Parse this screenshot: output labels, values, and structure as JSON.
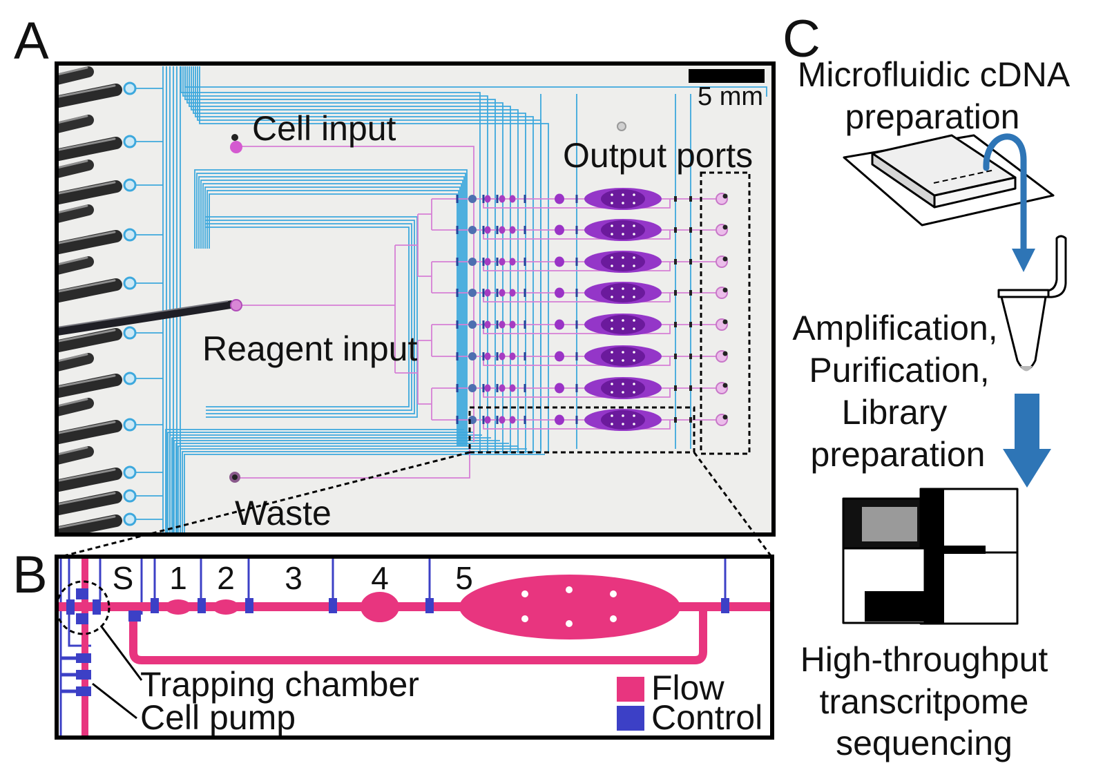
{
  "panels": {
    "a": "A",
    "b": "B",
    "c": "C"
  },
  "panel_a": {
    "scale_bar": "5 mm",
    "cell_input": "Cell input",
    "output_ports": "Output ports",
    "reagent_input": "Reagent input",
    "waste": "Waste"
  },
  "panel_b": {
    "stages": [
      "S",
      "1",
      "2",
      "3",
      "4",
      "5"
    ],
    "trapping_chamber": "Trapping chamber",
    "cell_pump": "Cell pump",
    "legend": [
      {
        "label": "Flow"
      },
      {
        "label": "Control"
      }
    ]
  },
  "panel_c": {
    "step1": [
      "Microfluidic cDNA",
      "preparation"
    ],
    "step2": [
      "Amplification,",
      "Purification,",
      "Library",
      "preparation"
    ],
    "step3": [
      "High-throughput",
      "transcritpome",
      "sequencing"
    ]
  },
  "colors": {
    "flow": "#e8357f",
    "control": "#3c40c6",
    "arrow": "#2e75b6",
    "photo_flow": "#d67fd5",
    "photo_control": "#3da8dd",
    "chamber": "#9436c8",
    "photo_background": "#eeeeec"
  }
}
